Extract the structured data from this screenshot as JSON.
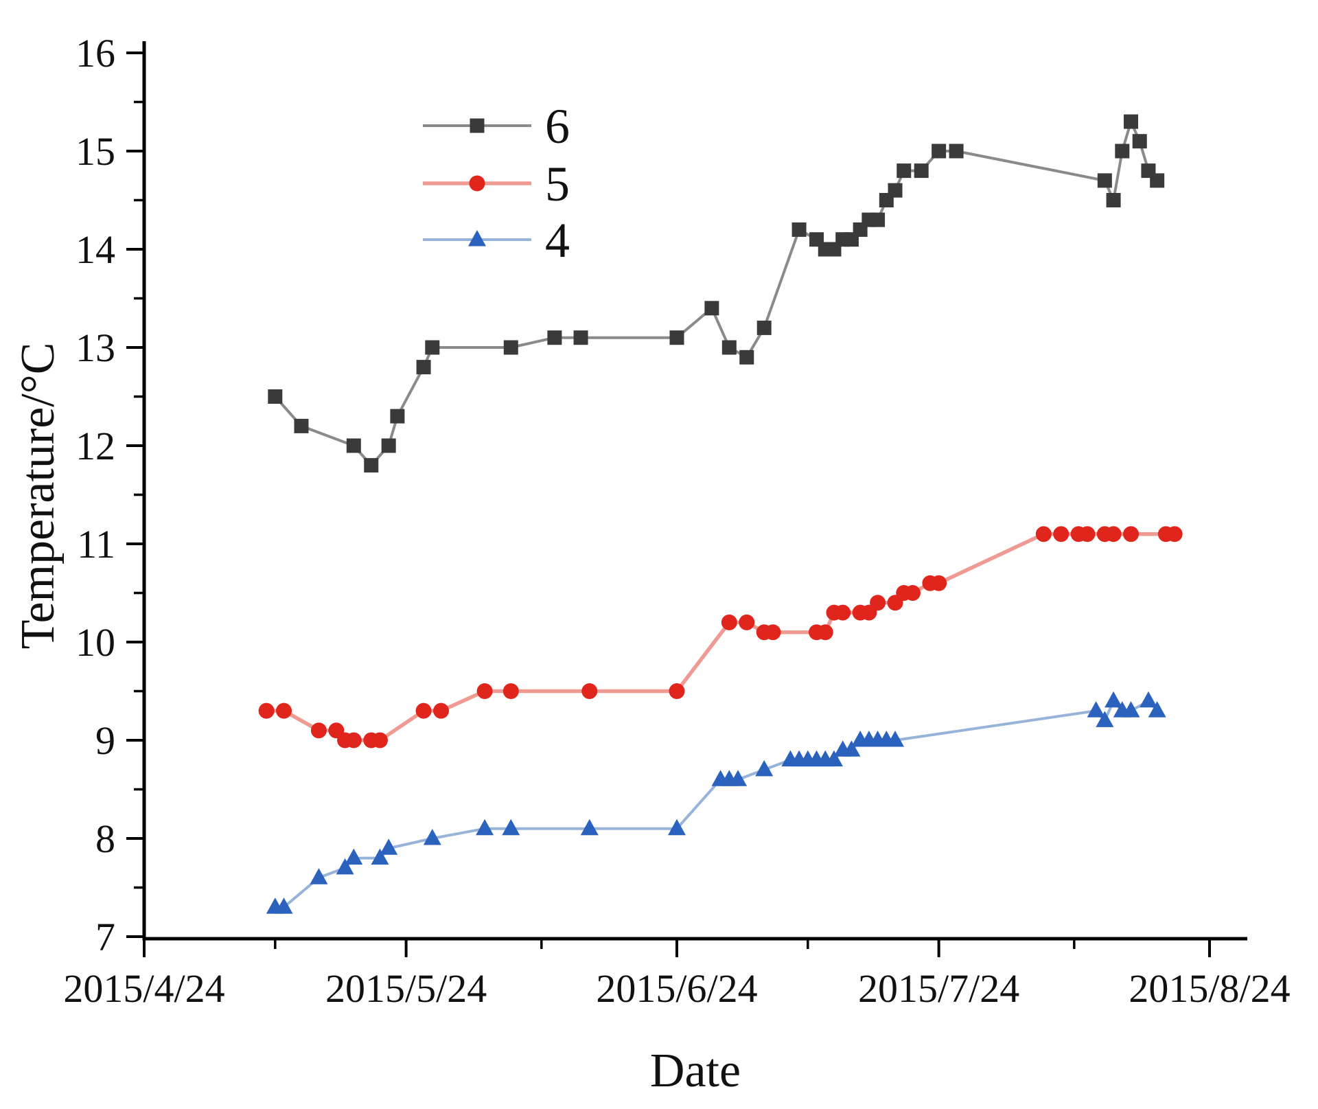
{
  "figure": {
    "background": "#ffffff",
    "axis_color": "#000000",
    "tick_label_color": "#111111"
  },
  "chart_data": {
    "type": "line",
    "title": "",
    "xlabel": "Date",
    "ylabel": "Temperature/°C",
    "grid": false,
    "legend_position": "upper-left-center",
    "x_axis": {
      "year": "2015",
      "tick_labels": [
        "2015/4/24",
        "2015/5/24",
        "2015/6/24",
        "2015/7/24",
        "2015/8/24"
      ],
      "minor_ticks": "midpoints",
      "domain_days_past_last_tick": 4
    },
    "y_axis": {
      "ylim": [
        7,
        16
      ],
      "major_step": 1,
      "minor_step": 0.5,
      "tick_labels": [
        "7",
        "8",
        "9",
        "10",
        "11",
        "12",
        "13",
        "14",
        "15",
        "16"
      ]
    },
    "series": [
      {
        "name": "6",
        "marker": "square",
        "marker_color": "#3a3a3a",
        "line_color": "#8a8a8a",
        "line_width": 4,
        "points": [
          [
            "5/9",
            12.5
          ],
          [
            "5/12",
            12.2
          ],
          [
            "5/18",
            12.0
          ],
          [
            "5/20",
            11.8
          ],
          [
            "5/22",
            12.0
          ],
          [
            "5/23",
            12.3
          ],
          [
            "5/26",
            12.8
          ],
          [
            "5/27",
            13.0
          ],
          [
            "6/5",
            13.0
          ],
          [
            "6/10",
            13.1
          ],
          [
            "6/13",
            13.1
          ],
          [
            "6/24",
            13.1
          ],
          [
            "6/28",
            13.4
          ],
          [
            "6/30",
            13.0
          ],
          [
            "7/2",
            12.9
          ],
          [
            "7/4",
            13.2
          ],
          [
            "7/8",
            14.2
          ],
          [
            "7/10",
            14.1
          ],
          [
            "7/11",
            14.0
          ],
          [
            "7/12",
            14.0
          ],
          [
            "7/13",
            14.1
          ],
          [
            "7/14",
            14.1
          ],
          [
            "7/15",
            14.2
          ],
          [
            "7/16",
            14.3
          ],
          [
            "7/17",
            14.3
          ],
          [
            "7/18",
            14.5
          ],
          [
            "7/19",
            14.6
          ],
          [
            "7/20",
            14.8
          ],
          [
            "7/22",
            14.8
          ],
          [
            "7/24",
            15.0
          ],
          [
            "7/26",
            15.0
          ],
          [
            "8/12",
            14.7
          ],
          [
            "8/13",
            14.5
          ],
          [
            "8/14",
            15.0
          ],
          [
            "8/15",
            15.3
          ],
          [
            "8/16",
            15.1
          ],
          [
            "8/17",
            14.8
          ],
          [
            "8/18",
            14.7
          ]
        ]
      },
      {
        "name": "5",
        "marker": "circle",
        "marker_color": "#e0251c",
        "line_color": "#ef9a93",
        "line_width": 5.5,
        "points": [
          [
            "5/8",
            9.3
          ],
          [
            "5/10",
            9.3
          ],
          [
            "5/14",
            9.1
          ],
          [
            "5/16",
            9.1
          ],
          [
            "5/17",
            9.0
          ],
          [
            "5/18",
            9.0
          ],
          [
            "5/20",
            9.0
          ],
          [
            "5/21",
            9.0
          ],
          [
            "5/26",
            9.3
          ],
          [
            "5/28",
            9.3
          ],
          [
            "6/2",
            9.5
          ],
          [
            "6/5",
            9.5
          ],
          [
            "6/14",
            9.5
          ],
          [
            "6/24",
            9.5
          ],
          [
            "6/30",
            10.2
          ],
          [
            "7/2",
            10.2
          ],
          [
            "7/4",
            10.1
          ],
          [
            "7/5",
            10.1
          ],
          [
            "7/10",
            10.1
          ],
          [
            "7/11",
            10.1
          ],
          [
            "7/12",
            10.3
          ],
          [
            "7/13",
            10.3
          ],
          [
            "7/15",
            10.3
          ],
          [
            "7/16",
            10.3
          ],
          [
            "7/17",
            10.4
          ],
          [
            "7/19",
            10.4
          ],
          [
            "7/20",
            10.5
          ],
          [
            "7/21",
            10.5
          ],
          [
            "7/23",
            10.6
          ],
          [
            "7/24",
            10.6
          ],
          [
            "8/5",
            11.1
          ],
          [
            "8/7",
            11.1
          ],
          [
            "8/9",
            11.1
          ],
          [
            "8/10",
            11.1
          ],
          [
            "8/12",
            11.1
          ],
          [
            "8/13",
            11.1
          ],
          [
            "8/15",
            11.1
          ],
          [
            "8/19",
            11.1
          ],
          [
            "8/20",
            11.1
          ]
        ]
      },
      {
        "name": "4",
        "marker": "triangle-up",
        "marker_color": "#2a62bd",
        "line_color": "#97b3d9",
        "line_width": 4,
        "points": [
          [
            "5/9",
            7.3
          ],
          [
            "5/10",
            7.3
          ],
          [
            "5/14",
            7.6
          ],
          [
            "5/17",
            7.7
          ],
          [
            "5/18",
            7.8
          ],
          [
            "5/21",
            7.8
          ],
          [
            "5/22",
            7.9
          ],
          [
            "5/27",
            8.0
          ],
          [
            "6/2",
            8.1
          ],
          [
            "6/5",
            8.1
          ],
          [
            "6/14",
            8.1
          ],
          [
            "6/24",
            8.1
          ],
          [
            "6/29",
            8.6
          ],
          [
            "6/30",
            8.6
          ],
          [
            "7/1",
            8.6
          ],
          [
            "7/4",
            8.7
          ],
          [
            "7/7",
            8.8
          ],
          [
            "7/8",
            8.8
          ],
          [
            "7/9",
            8.8
          ],
          [
            "7/10",
            8.8
          ],
          [
            "7/11",
            8.8
          ],
          [
            "7/12",
            8.8
          ],
          [
            "7/13",
            8.9
          ],
          [
            "7/14",
            8.9
          ],
          [
            "7/15",
            9.0
          ],
          [
            "7/16",
            9.0
          ],
          [
            "7/17",
            9.0
          ],
          [
            "7/18",
            9.0
          ],
          [
            "7/19",
            9.0
          ],
          [
            "8/11",
            9.3
          ],
          [
            "8/12",
            9.2
          ],
          [
            "8/13",
            9.4
          ],
          [
            "8/14",
            9.3
          ],
          [
            "8/15",
            9.3
          ],
          [
            "8/17",
            9.4
          ],
          [
            "8/18",
            9.3
          ]
        ]
      }
    ]
  }
}
